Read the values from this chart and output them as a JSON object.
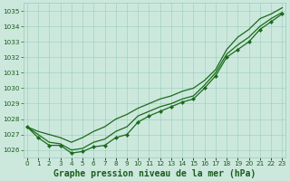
{
  "title": "Graphe pression niveau de la mer (hPa)",
  "xlabel_hours": [
    0,
    1,
    2,
    3,
    4,
    5,
    6,
    7,
    8,
    9,
    10,
    11,
    12,
    13,
    14,
    15,
    16,
    17,
    18,
    19,
    20,
    21,
    22,
    23
  ],
  "series": {
    "line_top": [
      1027.5,
      1027.2,
      1027.0,
      1026.8,
      1026.5,
      1026.8,
      1027.2,
      1027.5,
      1028.0,
      1028.3,
      1028.7,
      1029.0,
      1029.3,
      1029.5,
      1029.8,
      1030.0,
      1030.5,
      1031.2,
      1032.5,
      1033.3,
      1033.8,
      1034.5,
      1034.8,
      1035.2
    ],
    "line_mid": [
      1027.5,
      1027.0,
      1026.5,
      1026.4,
      1026.0,
      1026.1,
      1026.5,
      1026.7,
      1027.2,
      1027.5,
      1028.2,
      1028.5,
      1028.8,
      1029.0,
      1029.3,
      1029.5,
      1030.2,
      1031.0,
      1032.2,
      1032.8,
      1033.3,
      1034.0,
      1034.5,
      1034.9
    ],
    "line_low": [
      1027.5,
      1026.8,
      1026.3,
      1026.3,
      1025.8,
      1025.9,
      1026.2,
      1026.3,
      1026.8,
      1027.0,
      1027.8,
      1028.2,
      1028.5,
      1028.8,
      1029.1,
      1029.3,
      1030.0,
      1030.8,
      1032.0,
      1032.5,
      1033.0,
      1033.8,
      1034.3,
      1034.8
    ]
  },
  "markers_series": "line_low",
  "markers_x": [
    0,
    1,
    2,
    3,
    4,
    5,
    6,
    7,
    8,
    9,
    10,
    11,
    12,
    13,
    14,
    15,
    16,
    17,
    18,
    19,
    20,
    21,
    22,
    23
  ],
  "markers_y": [
    1027.5,
    1026.8,
    1026.3,
    1026.3,
    1025.8,
    1025.9,
    1026.2,
    1026.3,
    1026.8,
    1027.0,
    1027.8,
    1028.2,
    1028.5,
    1028.8,
    1029.1,
    1029.3,
    1030.0,
    1030.8,
    1032.0,
    1032.5,
    1033.0,
    1033.8,
    1034.3,
    1034.8
  ],
  "ylim": [
    1025.5,
    1035.5
  ],
  "yticks": [
    1026,
    1027,
    1028,
    1029,
    1030,
    1031,
    1032,
    1033,
    1034,
    1035
  ],
  "xticks": [
    0,
    1,
    2,
    3,
    4,
    5,
    6,
    7,
    8,
    9,
    10,
    11,
    12,
    13,
    14,
    15,
    16,
    17,
    18,
    19,
    20,
    21,
    22,
    23
  ],
  "xlim": [
    -0.3,
    23.3
  ],
  "line_color": "#1a6b1a",
  "marker_color": "#1a6b1a",
  "bg_color": "#cce8dd",
  "grid_color": "#99ccbb",
  "text_color": "#1a5c1a",
  "title_fontsize": 7.0,
  "tick_fontsize": 5.2,
  "line_width": 0.9,
  "marker_size": 2.5,
  "fig_width": 3.2,
  "fig_height": 2.0,
  "dpi": 100
}
